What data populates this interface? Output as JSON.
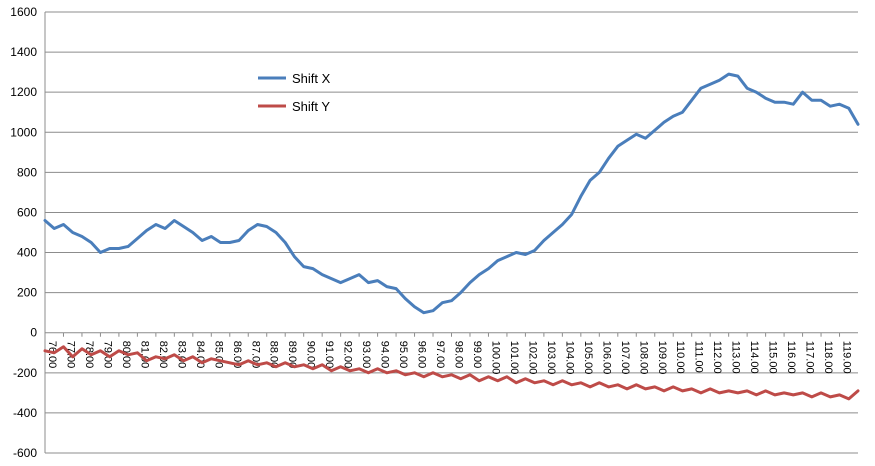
{
  "chart_data": {
    "type": "line",
    "title": "",
    "xlabel": "",
    "ylabel": "",
    "ylim": [
      -600,
      1600
    ],
    "yticks": [
      -600,
      -400,
      -200,
      0,
      200,
      400,
      600,
      800,
      1000,
      1200,
      1400,
      1600
    ],
    "xlim": [
      76,
      120
    ],
    "xticks": [
      "76.00",
      "77.00",
      "78.00",
      "79.00",
      "80.00",
      "81.00",
      "82.00",
      "83.00",
      "84.00",
      "85.00",
      "86.00",
      "87.00",
      "88.00",
      "89.00",
      "90.00",
      "91.00",
      "92.00",
      "93.00",
      "94.00",
      "95.00",
      "96.00",
      "97.00",
      "98.00",
      "99.00",
      "100.00",
      "101.00",
      "102.00",
      "103.00",
      "104.00",
      "105.00",
      "106.00",
      "107.00",
      "108.00",
      "109.00",
      "110.00",
      "111.00",
      "112.00",
      "113.00",
      "114.00",
      "115.00",
      "116.00",
      "117.00",
      "118.00",
      "119.00"
    ],
    "grid": true,
    "legend_position": "top-left-inside",
    "series": [
      {
        "name": "Shift X",
        "color": "#4a7ebb",
        "x": [
          76.0,
          76.5,
          77.0,
          77.5,
          78.0,
          78.5,
          79.0,
          79.5,
          80.0,
          80.5,
          81.0,
          81.5,
          82.0,
          82.5,
          83.0,
          83.5,
          84.0,
          84.5,
          85.0,
          85.5,
          86.0,
          86.5,
          87.0,
          87.5,
          88.0,
          88.5,
          89.0,
          89.5,
          90.0,
          90.5,
          91.0,
          91.5,
          92.0,
          92.5,
          93.0,
          93.5,
          94.0,
          94.5,
          95.0,
          95.5,
          96.0,
          96.5,
          97.0,
          97.5,
          98.0,
          98.5,
          99.0,
          99.5,
          100.0,
          100.5,
          101.0,
          101.5,
          102.0,
          102.5,
          103.0,
          103.5,
          104.0,
          104.5,
          105.0,
          105.5,
          106.0,
          106.5,
          107.0,
          107.5,
          108.0,
          108.5,
          109.0,
          109.5,
          110.0,
          110.5,
          111.0,
          111.5,
          112.0,
          112.5,
          113.0,
          113.5,
          114.0,
          114.5,
          115.0,
          115.5,
          116.0,
          116.5,
          117.0,
          117.5,
          118.0,
          118.5,
          119.0,
          119.5,
          120.0
        ],
        "values": [
          560,
          520,
          540,
          500,
          480,
          450,
          400,
          420,
          420,
          430,
          470,
          510,
          540,
          520,
          560,
          530,
          500,
          460,
          480,
          450,
          450,
          460,
          510,
          540,
          530,
          500,
          450,
          380,
          330,
          320,
          290,
          270,
          250,
          270,
          290,
          250,
          260,
          230,
          220,
          170,
          130,
          100,
          110,
          150,
          160,
          200,
          250,
          290,
          320,
          360,
          380,
          400,
          390,
          410,
          460,
          500,
          540,
          590,
          680,
          760,
          800,
          870,
          930,
          960,
          990,
          970,
          1010,
          1050,
          1080,
          1100,
          1160,
          1220,
          1240,
          1260,
          1290,
          1280,
          1220,
          1200,
          1170,
          1150,
          1150,
          1140,
          1200,
          1160,
          1160,
          1130,
          1140,
          1120,
          1040
        ]
      },
      {
        "name": "Shift Y",
        "color": "#be4b48",
        "x": [
          76.0,
          76.5,
          77.0,
          77.5,
          78.0,
          78.5,
          79.0,
          79.5,
          80.0,
          80.5,
          81.0,
          81.5,
          82.0,
          82.5,
          83.0,
          83.5,
          84.0,
          84.5,
          85.0,
          85.5,
          86.0,
          86.5,
          87.0,
          87.5,
          88.0,
          88.5,
          89.0,
          89.5,
          90.0,
          90.5,
          91.0,
          91.5,
          92.0,
          92.5,
          93.0,
          93.5,
          94.0,
          94.5,
          95.0,
          95.5,
          96.0,
          96.5,
          97.0,
          97.5,
          98.0,
          98.5,
          99.0,
          99.5,
          100.0,
          100.5,
          101.0,
          101.5,
          102.0,
          102.5,
          103.0,
          103.5,
          104.0,
          104.5,
          105.0,
          105.5,
          106.0,
          106.5,
          107.0,
          107.5,
          108.0,
          108.5,
          109.0,
          109.5,
          110.0,
          110.5,
          111.0,
          111.5,
          112.0,
          112.5,
          113.0,
          113.5,
          114.0,
          114.5,
          115.0,
          115.5,
          116.0,
          116.5,
          117.0,
          117.5,
          118.0,
          118.5,
          119.0,
          119.5,
          120.0
        ],
        "values": [
          -90,
          -100,
          -70,
          -120,
          -80,
          -110,
          -90,
          -120,
          -90,
          -110,
          -100,
          -140,
          -120,
          -130,
          -110,
          -140,
          -120,
          -150,
          -130,
          -140,
          -150,
          -160,
          -140,
          -160,
          -150,
          -170,
          -150,
          -170,
          -160,
          -180,
          -160,
          -190,
          -170,
          -190,
          -180,
          -200,
          -180,
          -200,
          -190,
          -210,
          -200,
          -220,
          -200,
          -220,
          -210,
          -230,
          -210,
          -240,
          -220,
          -240,
          -220,
          -250,
          -230,
          -250,
          -240,
          -260,
          -240,
          -260,
          -250,
          -270,
          -250,
          -270,
          -260,
          -280,
          -260,
          -280,
          -270,
          -290,
          -270,
          -290,
          -280,
          -300,
          -280,
          -300,
          -290,
          -300,
          -290,
          -310,
          -290,
          -310,
          -300,
          -310,
          -300,
          -320,
          -300,
          -320,
          -310,
          -330,
          -290
        ]
      }
    ]
  }
}
